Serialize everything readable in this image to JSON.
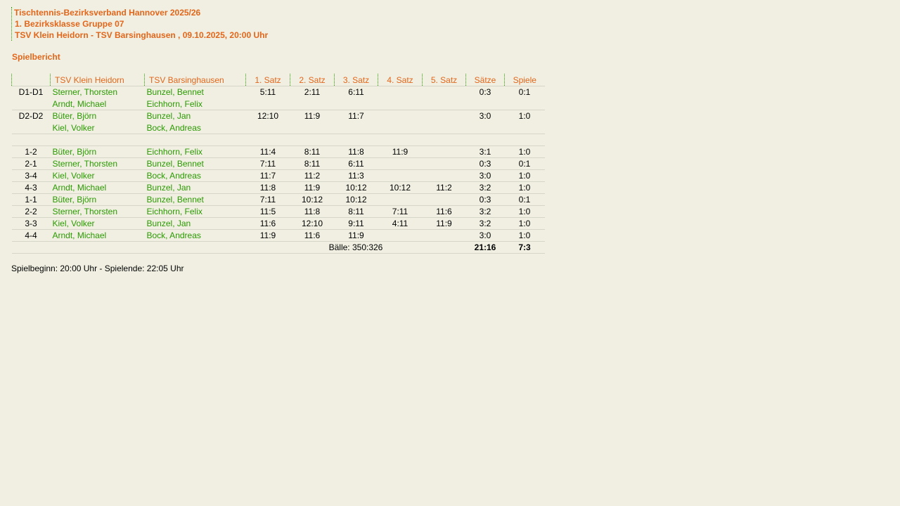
{
  "header": {
    "association": "Tischtennis-Bezirksverband Hannover 2025/26",
    "league": "1. Bezirksklasse Gruppe 07",
    "match": "TSV Klein Heidorn - TSV Barsinghausen , 09.10.2025, 20:00 Uhr"
  },
  "section_title": "Spielbericht",
  "columns": [
    "",
    "TSV Klein Heidorn",
    "TSV Barsinghausen",
    "1. Satz",
    "2. Satz",
    "3. Satz",
    "4. Satz",
    "5. Satz",
    "Sätze",
    "Spiele"
  ],
  "doubles": [
    {
      "pair": "D1-D1",
      "home": [
        "Sterner, Thorsten",
        "Arndt, Michael"
      ],
      "away": [
        "Bunzel, Bennet",
        "Eichhorn, Felix"
      ],
      "sets": [
        "5:11",
        "2:11",
        "6:11",
        "",
        ""
      ],
      "saetze": "0:3",
      "spiele": "0:1"
    },
    {
      "pair": "D2-D2",
      "home": [
        "Büter, Björn",
        "Kiel, Volker"
      ],
      "away": [
        "Bunzel, Jan",
        "Bock, Andreas"
      ],
      "sets": [
        "12:10",
        "11:9",
        "11:7",
        "",
        ""
      ],
      "saetze": "3:0",
      "spiele": "1:0"
    }
  ],
  "singles": [
    {
      "pair": "1-2",
      "home": "Büter, Björn",
      "away": "Eichhorn, Felix",
      "sets": [
        "11:4",
        "8:11",
        "11:8",
        "11:9",
        ""
      ],
      "saetze": "3:1",
      "spiele": "1:0"
    },
    {
      "pair": "2-1",
      "home": "Sterner, Thorsten",
      "away": "Bunzel, Bennet",
      "sets": [
        "7:11",
        "8:11",
        "6:11",
        "",
        ""
      ],
      "saetze": "0:3",
      "spiele": "0:1"
    },
    {
      "pair": "3-4",
      "home": "Kiel, Volker",
      "away": "Bock, Andreas",
      "sets": [
        "11:7",
        "11:2",
        "11:3",
        "",
        ""
      ],
      "saetze": "3:0",
      "spiele": "1:0"
    },
    {
      "pair": "4-3",
      "home": "Arndt, Michael",
      "away": "Bunzel, Jan",
      "sets": [
        "11:8",
        "11:9",
        "10:12",
        "10:12",
        "11:2"
      ],
      "saetze": "3:2",
      "spiele": "1:0"
    },
    {
      "pair": "1-1",
      "home": "Büter, Björn",
      "away": "Bunzel, Bennet",
      "sets": [
        "7:11",
        "10:12",
        "10:12",
        "",
        ""
      ],
      "saetze": "0:3",
      "spiele": "0:1"
    },
    {
      "pair": "2-2",
      "home": "Sterner, Thorsten",
      "away": "Eichhorn, Felix",
      "sets": [
        "11:5",
        "11:8",
        "8:11",
        "7:11",
        "11:6"
      ],
      "saetze": "3:2",
      "spiele": "1:0"
    },
    {
      "pair": "3-3",
      "home": "Kiel, Volker",
      "away": "Bunzel, Jan",
      "sets": [
        "11:6",
        "12:10",
        "9:11",
        "4:11",
        "11:9"
      ],
      "saetze": "3:2",
      "spiele": "1:0"
    },
    {
      "pair": "4-4",
      "home": "Arndt, Michael",
      "away": "Bock, Andreas",
      "sets": [
        "11:9",
        "11:6",
        "11:9",
        "",
        ""
      ],
      "saetze": "3:0",
      "spiele": "1:0"
    }
  ],
  "totals": {
    "balls": "Bälle: 350:326",
    "saetze": "21:16",
    "spiele": "7:3"
  },
  "footer": "Spielbeginn: 20:00 Uhr - Spielende: 22:05 Uhr"
}
